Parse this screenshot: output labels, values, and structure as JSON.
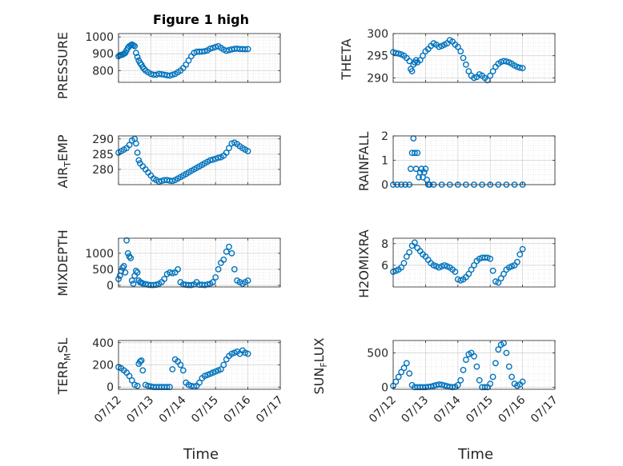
{
  "figure": {
    "title": "Figure 1 high",
    "marker_color": "#0072BD",
    "x_tick_labels": [
      "07/12",
      "07/13",
      "07/14",
      "07/15",
      "07/16",
      "07/17"
    ]
  },
  "chart_data": [
    {
      "type": "scatter",
      "title": "Figure 1 high",
      "ylabel": "PRESSURE",
      "xlabel": "",
      "xlim": [
        "07/12",
        "07/17"
      ],
      "ylim": [
        730,
        1020
      ],
      "yticks": [
        "800",
        "900",
        "1000"
      ],
      "grid": true,
      "x": [
        "07/12 00:00",
        "07/12 01:00",
        "07/12 02:00",
        "07/12 03:00",
        "07/12 04:00",
        "07/12 05:00",
        "07/12 06:00",
        "07/12 07:00",
        "07/12 08:00",
        "07/12 09:00",
        "07/12 10:00",
        "07/12 11:00",
        "07/12 12:00",
        "07/12 13:00",
        "07/12 14:00",
        "07/12 15:00",
        "07/12 16:00",
        "07/12 17:00",
        "07/12 18:00",
        "07/12 19:00",
        "07/12 20:00",
        "07/12 22:00",
        "07/13 00:00",
        "07/13 02:00",
        "07/13 04:00",
        "07/13 06:00",
        "07/13 08:00",
        "07/13 10:00",
        "07/13 12:00",
        "07/13 14:00",
        "07/13 16:00",
        "07/13 18:00",
        "07/13 20:00",
        "07/13 22:00",
        "07/14 00:00",
        "07/14 02:00",
        "07/14 04:00",
        "07/14 06:00",
        "07/14 08:00",
        "07/14 10:00",
        "07/14 12:00",
        "07/14 14:00",
        "07/14 16:00",
        "07/14 18:00",
        "07/14 20:00",
        "07/14 22:00",
        "07/15 00:00",
        "07/15 02:00",
        "07/15 04:00",
        "07/15 06:00",
        "07/15 08:00",
        "07/15 10:00",
        "07/15 12:00",
        "07/15 14:00",
        "07/15 16:00",
        "07/15 18:00",
        "07/15 20:00",
        "07/15 22:00",
        "07/16 00:00"
      ],
      "y": [
        885,
        890,
        893,
        895,
        900,
        905,
        920,
        935,
        945,
        950,
        955,
        950,
        945,
        905,
        880,
        860,
        845,
        835,
        820,
        810,
        800,
        790,
        780,
        775,
        775,
        780,
        778,
        775,
        772,
        770,
        775,
        780,
        790,
        800,
        815,
        835,
        860,
        885,
        905,
        912,
        912,
        913,
        915,
        920,
        930,
        935,
        940,
        945,
        935,
        925,
        918,
        922,
        926,
        929,
        930,
        928,
        928,
        927,
        928
      ]
    },
    {
      "type": "scatter",
      "ylabel": "THETA",
      "xlabel": "",
      "xlim": [
        "07/12",
        "07/17"
      ],
      "ylim": [
        289,
        300
      ],
      "yticks": [
        "290",
        "295",
        "300"
      ],
      "grid": true,
      "x": [
        "07/12 00:00",
        "07/12 02:00",
        "07/12 04:00",
        "07/12 06:00",
        "07/12 08:00",
        "07/12 10:00",
        "07/12 12:00",
        "07/12 13:00",
        "07/12 14:00",
        "07/12 15:00",
        "07/12 16:00",
        "07/12 17:00",
        "07/12 18:00",
        "07/12 20:00",
        "07/12 22:00",
        "07/13 00:00",
        "07/13 02:00",
        "07/13 04:00",
        "07/13 06:00",
        "07/13 08:00",
        "07/13 10:00",
        "07/13 12:00",
        "07/13 14:00",
        "07/13 16:00",
        "07/13 18:00",
        "07/13 20:00",
        "07/13 22:00",
        "07/14 00:00",
        "07/14 02:00",
        "07/14 04:00",
        "07/14 06:00",
        "07/14 08:00",
        "07/14 10:00",
        "07/14 12:00",
        "07/14 14:00",
        "07/14 16:00",
        "07/14 18:00",
        "07/14 20:00",
        "07/14 22:00",
        "07/15 00:00",
        "07/15 02:00",
        "07/15 04:00",
        "07/15 06:00",
        "07/15 08:00",
        "07/15 10:00",
        "07/15 12:00",
        "07/15 14:00",
        "07/15 16:00",
        "07/15 18:00",
        "07/15 20:00",
        "07/15 22:00",
        "07/16 00:00"
      ],
      "y": [
        295.8,
        295.6,
        295.5,
        295.3,
        295,
        294.5,
        293.8,
        292,
        291.5,
        293,
        293.5,
        294,
        293.5,
        294,
        295,
        296,
        296.5,
        297.2,
        297.8,
        297.5,
        297,
        297.2,
        297.5,
        297.8,
        298.5,
        298.2,
        297.5,
        297,
        296,
        294.5,
        293,
        291.5,
        290.5,
        290,
        290.2,
        290.8,
        290.5,
        290,
        289.5,
        290.5,
        291.5,
        292.5,
        293.2,
        293.6,
        293.8,
        293.7,
        293.5,
        293.2,
        292.8,
        292.5,
        292.3,
        292.2
      ]
    },
    {
      "type": "scatter",
      "ylabel": "AIR_TEMP",
      "xlabel": "",
      "xlim": [
        "07/12",
        "07/17"
      ],
      "ylim": [
        275,
        291
      ],
      "yticks": [
        "280",
        "285",
        "290"
      ],
      "grid": true,
      "x": [
        "07/12 00:00",
        "07/12 02:00",
        "07/12 04:00",
        "07/12 06:00",
        "07/12 08:00",
        "07/12 10:00",
        "07/12 12:00",
        "07/12 13:00",
        "07/12 14:00",
        "07/12 15:00",
        "07/12 16:00",
        "07/12 18:00",
        "07/12 20:00",
        "07/12 22:00",
        "07/13 00:00",
        "07/13 02:00",
        "07/13 04:00",
        "07/13 06:00",
        "07/13 08:00",
        "07/13 10:00",
        "07/13 12:00",
        "07/13 14:00",
        "07/13 16:00",
        "07/13 18:00",
        "07/13 20:00",
        "07/13 22:00",
        "07/14 00:00",
        "07/14 02:00",
        "07/14 04:00",
        "07/14 06:00",
        "07/14 08:00",
        "07/14 10:00",
        "07/14 12:00",
        "07/14 14:00",
        "07/14 16:00",
        "07/14 18:00",
        "07/14 20:00",
        "07/14 22:00",
        "07/15 00:00",
        "07/15 02:00",
        "07/15 04:00",
        "07/15 06:00",
        "07/15 08:00",
        "07/15 10:00",
        "07/15 12:00",
        "07/15 14:00",
        "07/15 16:00",
        "07/15 18:00",
        "07/15 20:00",
        "07/15 22:00",
        "07/16 00:00"
      ],
      "y": [
        285.5,
        286,
        286.5,
        287,
        288,
        289.5,
        290,
        288.5,
        285.5,
        283,
        282,
        281,
        280,
        279,
        278,
        277,
        276.5,
        276,
        276.2,
        276.5,
        276.5,
        276.3,
        276.2,
        276.5,
        277,
        277.5,
        278,
        278.5,
        279,
        279.5,
        280,
        280.5,
        281,
        281.5,
        282,
        282.5,
        283,
        283.2,
        283.5,
        283.8,
        284,
        284.5,
        285.5,
        287,
        288.5,
        288.8,
        288.3,
        287.6,
        287,
        286.5,
        286
      ]
    },
    {
      "type": "scatter",
      "ylabel": "RAINFALL",
      "xlabel": "",
      "xlim": [
        "07/12",
        "07/17"
      ],
      "ylim": [
        0,
        2
      ],
      "yticks": [
        "0",
        "1",
        "2"
      ],
      "grid": true,
      "x": [
        "07/12 00:00",
        "07/12 03:00",
        "07/12 06:00",
        "07/12 09:00",
        "07/12 12:00",
        "07/12 13:00",
        "07/12 14:00",
        "07/12 15:00",
        "07/12 16:00",
        "07/12 17:00",
        "07/12 18:00",
        "07/12 19:00",
        "07/12 20:00",
        "07/12 21:00",
        "07/12 22:00",
        "07/12 23:00",
        "07/13 00:00",
        "07/13 01:00",
        "07/13 02:00",
        "07/13 03:00",
        "07/13 06:00",
        "07/13 12:00",
        "07/13 18:00",
        "07/14 00:00",
        "07/14 06:00",
        "07/14 12:00",
        "07/14 18:00",
        "07/15 00:00",
        "07/15 06:00",
        "07/15 12:00",
        "07/15 18:00",
        "07/16 00:00"
      ],
      "y": [
        0,
        0,
        0,
        0,
        0,
        0.65,
        1.3,
        1.9,
        1.3,
        0.65,
        1.3,
        0.3,
        0.5,
        0.65,
        0.3,
        0.5,
        0.65,
        0.2,
        0,
        0,
        0,
        0,
        0,
        0,
        0,
        0,
        0,
        0,
        0,
        0,
        0,
        0
      ]
    },
    {
      "type": "scatter",
      "ylabel": "MIXDEPTH",
      "xlabel": "",
      "xlim": [
        "07/12",
        "07/17"
      ],
      "ylim": [
        -50,
        1470
      ],
      "yticks": [
        "0",
        "500",
        "1000"
      ],
      "grid": true,
      "x": [
        "07/12 00:00",
        "07/12 01:00",
        "07/12 02:00",
        "07/12 03:00",
        "07/12 04:00",
        "07/12 05:00",
        "07/12 06:00",
        "07/12 07:00",
        "07/12 08:00",
        "07/12 09:00",
        "07/12 10:00",
        "07/12 11:00",
        "07/12 12:00",
        "07/12 13:00",
        "07/12 14:00",
        "07/12 15:00",
        "07/12 16:00",
        "07/12 17:00",
        "07/12 18:00",
        "07/12 20:00",
        "07/12 22:00",
        "07/13 00:00",
        "07/13 02:00",
        "07/13 04:00",
        "07/13 06:00",
        "07/13 08:00",
        "07/13 10:00",
        "07/13 12:00",
        "07/13 14:00",
        "07/13 16:00",
        "07/13 18:00",
        "07/13 20:00",
        "07/13 22:00",
        "07/14 00:00",
        "07/14 02:00",
        "07/14 04:00",
        "07/14 06:00",
        "07/14 08:00",
        "07/14 10:00",
        "07/14 12:00",
        "07/14 14:00",
        "07/14 16:00",
        "07/14 18:00",
        "07/14 20:00",
        "07/14 22:00",
        "07/15 00:00",
        "07/15 02:00",
        "07/15 04:00",
        "07/15 06:00",
        "07/15 08:00",
        "07/15 10:00",
        "07/15 12:00",
        "07/15 14:00",
        "07/15 16:00",
        "07/15 18:00",
        "07/15 20:00",
        "07/15 22:00",
        "07/16 00:00"
      ],
      "y": [
        200,
        300,
        450,
        550,
        600,
        400,
        1400,
        1000,
        900,
        850,
        150,
        50,
        300,
        450,
        400,
        150,
        100,
        80,
        60,
        40,
        20,
        10,
        10,
        20,
        50,
        100,
        200,
        350,
        400,
        380,
        400,
        500,
        100,
        30,
        20,
        10,
        10,
        30,
        100,
        20,
        20,
        10,
        30,
        50,
        100,
        250,
        500,
        700,
        800,
        1050,
        1200,
        1000,
        500,
        150,
        100,
        50,
        100,
        150
      ]
    },
    {
      "type": "scatter",
      "ylabel": "H2OMIXRA",
      "xlabel": "",
      "xlim": [
        "07/12",
        "07/17"
      ],
      "ylim": [
        4,
        8.5
      ],
      "yticks": [
        "6",
        "8"
      ],
      "grid": true,
      "x": [
        "07/12 00:00",
        "07/12 02:00",
        "07/12 04:00",
        "07/12 06:00",
        "07/12 08:00",
        "07/12 10:00",
        "07/12 12:00",
        "07/12 14:00",
        "07/12 16:00",
        "07/12 18:00",
        "07/12 20:00",
        "07/12 22:00",
        "07/13 00:00",
        "07/13 02:00",
        "07/13 04:00",
        "07/13 06:00",
        "07/13 08:00",
        "07/13 10:00",
        "07/13 12:00",
        "07/13 14:00",
        "07/13 16:00",
        "07/13 18:00",
        "07/13 20:00",
        "07/13 22:00",
        "07/14 00:00",
        "07/14 02:00",
        "07/14 04:00",
        "07/14 06:00",
        "07/14 08:00",
        "07/14 10:00",
        "07/14 12:00",
        "07/14 14:00",
        "07/14 16:00",
        "07/14 18:00",
        "07/14 20:00",
        "07/14 22:00",
        "07/15 00:00",
        "07/15 02:00",
        "07/15 04:00",
        "07/15 06:00",
        "07/15 08:00",
        "07/15 10:00",
        "07/15 12:00",
        "07/15 14:00",
        "07/15 16:00",
        "07/15 18:00",
        "07/15 20:00",
        "07/15 22:00",
        "07/16 00:00"
      ],
      "y": [
        5.4,
        5.5,
        5.6,
        5.8,
        6.2,
        6.8,
        7.2,
        7.8,
        8.1,
        7.6,
        7.3,
        7,
        6.8,
        6.5,
        6.2,
        6,
        5.9,
        5.8,
        5.9,
        6,
        5.9,
        5.8,
        5.6,
        5.4,
        4.7,
        4.6,
        4.7,
        4.9,
        5.2,
        5.6,
        6,
        6.4,
        6.6,
        6.7,
        6.7,
        6.7,
        6.6,
        5.5,
        4.5,
        4.4,
        4.8,
        5.2,
        5.6,
        5.8,
        5.9,
        6,
        6.3,
        7,
        7.5
      ]
    },
    {
      "type": "scatter",
      "ylabel": "TERR_MSL",
      "xlabel": "Time",
      "xlim": [
        "07/12",
        "07/17"
      ],
      "ylim": [
        -20,
        420
      ],
      "yticks": [
        "0",
        "200",
        "400"
      ],
      "xticks": [
        "07/12",
        "07/13",
        "07/14",
        "07/15",
        "07/16",
        "07/17"
      ],
      "grid": true,
      "x": [
        "07/12 00:00",
        "07/12 02:00",
        "07/12 04:00",
        "07/12 06:00",
        "07/12 08:00",
        "07/12 10:00",
        "07/12 12:00",
        "07/12 14:00",
        "07/12 15:00",
        "07/12 16:00",
        "07/12 17:00",
        "07/12 18:00",
        "07/12 20:00",
        "07/12 22:00",
        "07/13 00:00",
        "07/13 02:00",
        "07/13 04:00",
        "07/13 06:00",
        "07/13 08:00",
        "07/13 10:00",
        "07/13 12:00",
        "07/13 14:00",
        "07/13 16:00",
        "07/13 18:00",
        "07/13 20:00",
        "07/13 22:00",
        "07/14 00:00",
        "07/14 02:00",
        "07/14 04:00",
        "07/14 06:00",
        "07/14 08:00",
        "07/14 10:00",
        "07/14 12:00",
        "07/14 14:00",
        "07/14 16:00",
        "07/14 18:00",
        "07/14 20:00",
        "07/14 22:00",
        "07/15 00:00",
        "07/15 02:00",
        "07/15 04:00",
        "07/15 06:00",
        "07/15 08:00",
        "07/15 10:00",
        "07/15 12:00",
        "07/15 14:00",
        "07/15 16:00",
        "07/15 18:00",
        "07/15 20:00",
        "07/15 22:00",
        "07/16 00:00"
      ],
      "y": [
        180,
        170,
        150,
        130,
        100,
        60,
        20,
        10,
        210,
        230,
        240,
        150,
        20,
        10,
        5,
        0,
        0,
        0,
        0,
        0,
        0,
        0,
        160,
        250,
        230,
        200,
        150,
        40,
        20,
        10,
        5,
        10,
        40,
        80,
        100,
        110,
        120,
        130,
        140,
        150,
        160,
        200,
        250,
        280,
        300,
        310,
        320,
        300,
        330,
        310,
        300
      ]
    },
    {
      "type": "scatter",
      "ylabel": "SUN_FLUX",
      "xlabel": "Time",
      "xlim": [
        "07/12",
        "07/17"
      ],
      "ylim": [
        -30,
        680
      ],
      "yticks": [
        "0",
        "500"
      ],
      "xticks": [
        "07/12",
        "07/13",
        "07/14",
        "07/15",
        "07/16",
        "07/17"
      ],
      "grid": true,
      "x": [
        "07/12 00:00",
        "07/12 02:00",
        "07/12 04:00",
        "07/12 06:00",
        "07/12 08:00",
        "07/12 10:00",
        "07/12 12:00",
        "07/12 14:00",
        "07/12 16:00",
        "07/12 18:00",
        "07/12 20:00",
        "07/12 22:00",
        "07/13 00:00",
        "07/13 02:00",
        "07/13 04:00",
        "07/13 06:00",
        "07/13 08:00",
        "07/13 10:00",
        "07/13 12:00",
        "07/13 14:00",
        "07/13 16:00",
        "07/13 18:00",
        "07/13 20:00",
        "07/13 22:00",
        "07/14 00:00",
        "07/14 02:00",
        "07/14 04:00",
        "07/14 06:00",
        "07/14 08:00",
        "07/14 10:00",
        "07/14 12:00",
        "07/14 14:00",
        "07/14 16:00",
        "07/14 18:00",
        "07/14 20:00",
        "07/14 22:00",
        "07/15 00:00",
        "07/15 02:00",
        "07/15 04:00",
        "07/15 06:00",
        "07/15 08:00",
        "07/15 10:00",
        "07/15 12:00",
        "07/15 14:00",
        "07/15 16:00",
        "07/15 18:00",
        "07/15 20:00",
        "07/15 22:00",
        "07/16 00:00"
      ],
      "y": [
        20,
        80,
        150,
        220,
        280,
        350,
        200,
        30,
        0,
        0,
        0,
        0,
        0,
        5,
        10,
        20,
        30,
        40,
        35,
        25,
        15,
        5,
        0,
        5,
        30,
        100,
        250,
        400,
        480,
        500,
        450,
        300,
        100,
        0,
        0,
        0,
        50,
        150,
        350,
        550,
        620,
        640,
        500,
        300,
        150,
        50,
        20,
        40,
        80
      ]
    }
  ]
}
